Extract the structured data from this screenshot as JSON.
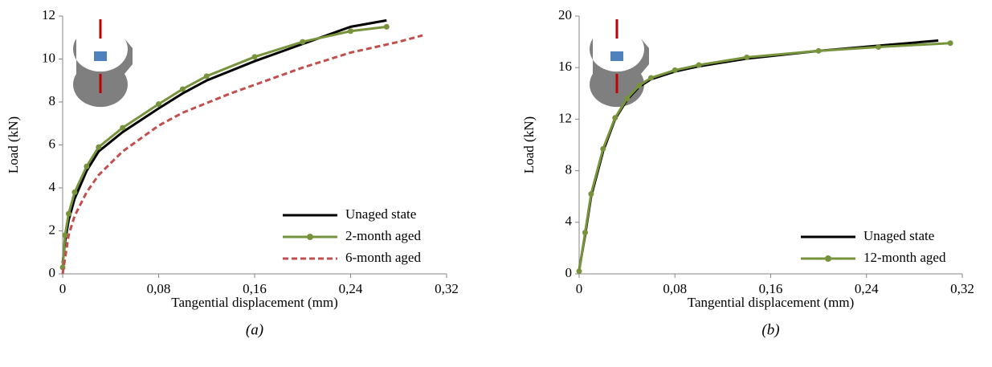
{
  "chart_data": [
    {
      "type": "line",
      "caption": "(a)",
      "x_label": "Tangential displacement (mm)",
      "y_label": "Load (kN)",
      "xlim": [
        0,
        0.32
      ],
      "xticks": [
        0,
        {
          "value": 0.08,
          "label": "0,08"
        },
        {
          "value": 0.16,
          "label": "0,16"
        },
        {
          "value": 0.24,
          "label": "0,24"
        },
        {
          "value": 0.32,
          "label": "0,32"
        }
      ],
      "ylim": [
        0,
        12
      ],
      "yticks": [
        0,
        2,
        4,
        6,
        8,
        10,
        12
      ],
      "legend": "lower right",
      "series": [
        {
          "name": "Unaged state",
          "color": "#000000",
          "line_style": "solid",
          "markers": false,
          "x": [
            0,
            0.002,
            0.005,
            0.01,
            0.02,
            0.03,
            0.05,
            0.08,
            0.1,
            0.12,
            0.16,
            0.2,
            0.24,
            0.27
          ],
          "values": [
            0.5,
            1.5,
            2.5,
            3.5,
            4.8,
            5.7,
            6.6,
            7.7,
            8.4,
            9.0,
            9.9,
            10.7,
            11.5,
            11.8
          ]
        },
        {
          "name": "2-month aged",
          "color": "#77933c",
          "line_style": "solid",
          "markers": true,
          "x": [
            0,
            0.002,
            0.005,
            0.01,
            0.02,
            0.03,
            0.05,
            0.08,
            0.1,
            0.12,
            0.16,
            0.2,
            0.24,
            0.27
          ],
          "values": [
            0.3,
            1.8,
            2.8,
            3.8,
            5.0,
            5.9,
            6.8,
            7.9,
            8.6,
            9.2,
            10.1,
            10.8,
            11.3,
            11.5
          ]
        },
        {
          "name": "6-month aged",
          "color": "#c0504d",
          "line_style": "dashed",
          "markers": false,
          "x": [
            0,
            0.005,
            0.01,
            0.02,
            0.03,
            0.05,
            0.08,
            0.1,
            0.14,
            0.18,
            0.2,
            0.24,
            0.28,
            0.3
          ],
          "values": [
            0,
            1.8,
            2.7,
            3.8,
            4.6,
            5.7,
            6.9,
            7.5,
            8.4,
            9.2,
            9.6,
            10.3,
            10.8,
            11.1
          ]
        }
      ]
    },
    {
      "type": "line",
      "caption": "(b)",
      "x_label": "Tangential displacement (mm)",
      "y_label": "Load (kN)",
      "xlim": [
        0,
        0.32
      ],
      "xticks": [
        0,
        {
          "value": 0.08,
          "label": "0,08"
        },
        {
          "value": 0.16,
          "label": "0,16"
        },
        {
          "value": 0.24,
          "label": "0,24"
        },
        {
          "value": 0.32,
          "label": "0,32"
        }
      ],
      "ylim": [
        0,
        20
      ],
      "yticks": [
        0,
        4,
        8,
        12,
        16,
        20
      ],
      "legend": "lower right",
      "series": [
        {
          "name": "Unaged state",
          "color": "#000000",
          "line_style": "solid",
          "markers": false,
          "x": [
            0,
            0.005,
            0.01,
            0.02,
            0.03,
            0.04,
            0.05,
            0.06,
            0.08,
            0.1,
            0.14,
            0.2,
            0.25,
            0.3
          ],
          "values": [
            0.3,
            3,
            6,
            9.5,
            12,
            13.5,
            14.5,
            15.1,
            15.7,
            16.1,
            16.7,
            17.3,
            17.7,
            18.1
          ]
        },
        {
          "name": "12-month aged",
          "color": "#77933c",
          "line_style": "solid",
          "markers": true,
          "x": [
            0,
            0.005,
            0.01,
            0.02,
            0.03,
            0.04,
            0.05,
            0.06,
            0.08,
            0.1,
            0.14,
            0.2,
            0.25,
            0.31
          ],
          "values": [
            0.2,
            3.2,
            6.2,
            9.7,
            12.1,
            13.6,
            14.6,
            15.2,
            15.8,
            16.2,
            16.8,
            17.3,
            17.6,
            17.9
          ]
        }
      ]
    }
  ]
}
